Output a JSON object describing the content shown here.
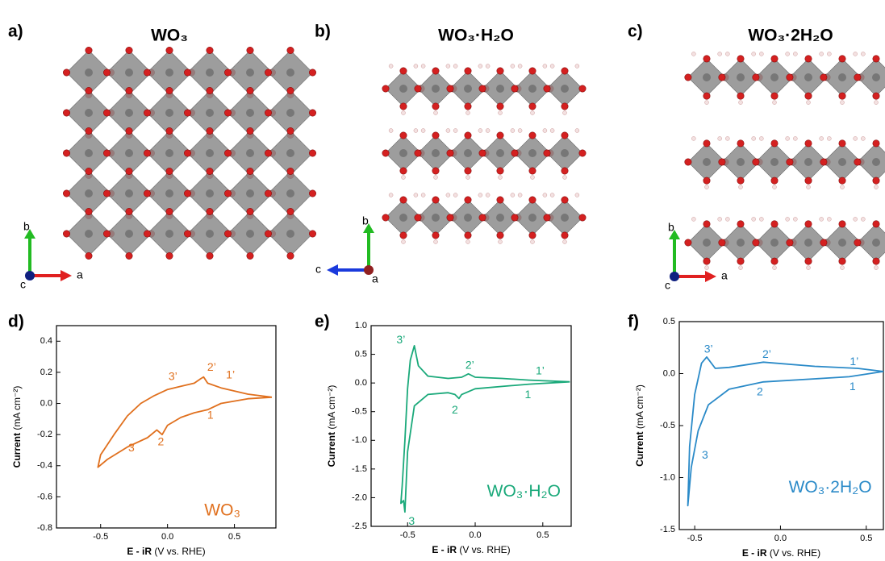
{
  "structures": [
    {
      "label": "a)",
      "title": "WO₃",
      "axes": [
        "b",
        "a",
        "c"
      ]
    },
    {
      "label": "b)",
      "title": "WO₃·H₂O",
      "axes": [
        "b",
        "c",
        "a"
      ]
    },
    {
      "label": "c)",
      "title": "WO₃·2H₂O",
      "axes": [
        "b",
        "a",
        "c"
      ]
    }
  ],
  "chart_data": [
    {
      "type": "line",
      "panel": "d)",
      "annotation": "WO₃",
      "color": "#e0701e",
      "peaks": [
        "3’",
        "2’",
        "1’",
        "1",
        "2",
        "3"
      ],
      "xlabel": [
        "E - iR",
        "(V vs. RHE)"
      ],
      "ylabel": [
        "Current",
        "(mA cm⁻²)"
      ],
      "x": [
        0.78,
        0.6,
        0.4,
        0.3,
        0.27,
        0.25,
        0.2,
        0.1,
        0.0,
        -0.1,
        -0.2,
        -0.3,
        -0.4,
        -0.5,
        -0.52,
        -0.45,
        -0.3,
        -0.15,
        -0.08,
        -0.04,
        0.0,
        0.1,
        0.2,
        0.3,
        0.4,
        0.6,
        0.78
      ],
      "values": [
        0.04,
        0.06,
        0.1,
        0.13,
        0.17,
        0.16,
        0.13,
        0.11,
        0.09,
        0.05,
        0.0,
        -0.08,
        -0.2,
        -0.33,
        -0.41,
        -0.36,
        -0.28,
        -0.22,
        -0.17,
        -0.2,
        -0.14,
        -0.09,
        -0.06,
        -0.04,
        0.0,
        0.03,
        0.04
      ],
      "xlim": [
        -0.83,
        0.81
      ],
      "ylim": [
        -0.8,
        0.5
      ],
      "xticks": [
        -0.5,
        {
          "value": 0,
          "label": "0.0"
        },
        0.5
      ],
      "yticks": [
        -0.8,
        -0.6,
        -0.4,
        -0.2,
        {
          "value": 0,
          "label": "0.0"
        },
        0.2,
        0.4
      ]
    },
    {
      "type": "line",
      "panel": "e)",
      "annotation": "WO₃·H₂O",
      "color": "#1aa97a",
      "peaks": [
        "3’",
        "2’",
        "1’",
        "1",
        "2",
        "3"
      ],
      "xlabel": [
        "E - iR",
        "(V vs. RHE)"
      ],
      "ylabel": [
        "Current",
        "(mA cm⁻²)"
      ],
      "x": [
        0.7,
        0.4,
        0.2,
        0.0,
        -0.05,
        -0.1,
        -0.2,
        -0.35,
        -0.42,
        -0.45,
        -0.48,
        -0.5,
        -0.52,
        -0.54,
        -0.55,
        -0.53,
        -0.52,
        -0.5,
        -0.45,
        -0.35,
        -0.2,
        -0.15,
        -0.12,
        -0.1,
        0.0,
        0.2,
        0.4,
        0.7
      ],
      "values": [
        0.02,
        0.05,
        0.08,
        0.1,
        0.16,
        0.1,
        0.08,
        0.12,
        0.3,
        0.65,
        0.4,
        -0.1,
        -1.0,
        -1.8,
        -2.1,
        -2.05,
        -2.25,
        -1.2,
        -0.4,
        -0.2,
        -0.17,
        -0.2,
        -0.27,
        -0.2,
        -0.1,
        -0.06,
        -0.02,
        0.02
      ],
      "xlim": [
        -0.77,
        0.71
      ],
      "ylim": [
        -2.5,
        1.0
      ],
      "xticks": [
        -0.5,
        {
          "value": 0,
          "label": "0.0"
        },
        0.5
      ],
      "yticks": [
        {
          "value": 1,
          "label": "1.0"
        },
        0.5,
        {
          "value": 0,
          "label": "0.0"
        },
        -0.5,
        {
          "value": -1,
          "label": "-1.0"
        },
        -1.5,
        {
          "value": -2,
          "label": "-2.0"
        },
        -2.5
      ]
    },
    {
      "type": "line",
      "panel": "f)",
      "annotation": "WO₃·2H₂O",
      "color": "#2a8ac8",
      "peaks": [
        "3’",
        "2’",
        "1’",
        "1",
        "2",
        "3"
      ],
      "xlabel": [
        "E - iR",
        "(V vs. RHE)"
      ],
      "ylabel": [
        "Current",
        "(mA cm⁻²)"
      ],
      "x": [
        0.6,
        0.45,
        0.2,
        -0.1,
        -0.3,
        -0.38,
        -0.43,
        -0.46,
        -0.5,
        -0.53,
        -0.54,
        -0.52,
        -0.48,
        -0.42,
        -0.3,
        -0.1,
        0.2,
        0.4,
        0.6
      ],
      "values": [
        0.02,
        0.05,
        0.07,
        0.11,
        0.06,
        0.05,
        0.16,
        0.1,
        -0.2,
        -0.7,
        -1.27,
        -0.9,
        -0.55,
        -0.3,
        -0.15,
        -0.08,
        -0.05,
        -0.03,
        0.02
      ],
      "xlim": [
        -0.59,
        0.6
      ],
      "ylim": [
        -1.5,
        0.5
      ],
      "xticks": [
        -0.5,
        {
          "value": 0,
          "label": "0.0"
        },
        0.5
      ],
      "yticks": [
        0.5,
        {
          "value": 0,
          "label": "0.0"
        },
        -0.5,
        {
          "value": -1,
          "label": "-1.0"
        },
        -1.5
      ]
    }
  ]
}
